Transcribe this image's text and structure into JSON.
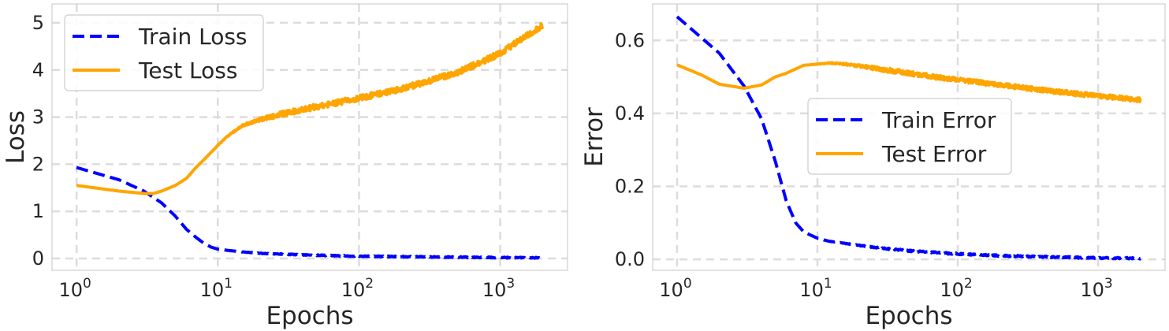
{
  "colors": {
    "train": "#0000ff",
    "test": "#ffa500",
    "grid": "#dcdcdc",
    "text": "#262626"
  },
  "chart_data": [
    {
      "type": "line",
      "xlabel": "Epochs",
      "ylabel": "Loss",
      "xscale": "log",
      "xlim": [
        0.67,
        3000
      ],
      "ylim": [
        -0.25,
        5.4
      ],
      "xticks": [
        {
          "value": 1,
          "base": "10",
          "exp": "0"
        },
        {
          "value": 10,
          "base": "10",
          "exp": "1"
        },
        {
          "value": 100,
          "base": "10",
          "exp": "2"
        },
        {
          "value": 1000,
          "base": "10",
          "exp": "3"
        }
      ],
      "yticks": [
        {
          "value": 0,
          "label": "0"
        },
        {
          "value": 1,
          "label": "1"
        },
        {
          "value": 2,
          "label": "2"
        },
        {
          "value": 3,
          "label": "3"
        },
        {
          "value": 4,
          "label": "4"
        },
        {
          "value": 5,
          "label": "5"
        }
      ],
      "grid": true,
      "legend": "upper left",
      "series": [
        {
          "name": "Train Loss",
          "style": "dashed",
          "color": "#0000ff",
          "noise": 0.01,
          "x": [
            1,
            2,
            3,
            4,
            5,
            6,
            7,
            8,
            9,
            10,
            12,
            15,
            20,
            30,
            50,
            100,
            200,
            500,
            1000,
            2000
          ],
          "y": [
            1.93,
            1.67,
            1.43,
            1.18,
            0.9,
            0.62,
            0.45,
            0.32,
            0.24,
            0.2,
            0.17,
            0.14,
            0.11,
            0.09,
            0.07,
            0.05,
            0.04,
            0.03,
            0.02,
            0.015
          ]
        },
        {
          "name": "Test Loss",
          "style": "solid",
          "color": "#ffa500",
          "noise": 0.06,
          "x": [
            1,
            2,
            3,
            3.5,
            4,
            5,
            6,
            7,
            8,
            10,
            12,
            15,
            20,
            30,
            50,
            100,
            200,
            300,
            500,
            1000,
            1500,
            2000
          ],
          "y": [
            1.55,
            1.43,
            1.38,
            1.38,
            1.43,
            1.55,
            1.7,
            1.93,
            2.1,
            2.4,
            2.62,
            2.82,
            2.95,
            3.08,
            3.22,
            3.4,
            3.6,
            3.75,
            3.95,
            4.35,
            4.7,
            4.95
          ]
        }
      ]
    },
    {
      "type": "line",
      "xlabel": "Epochs",
      "ylabel": "Error",
      "xscale": "log",
      "xlim": [
        0.67,
        3000
      ],
      "ylim": [
        -0.03,
        0.7
      ],
      "xticks": [
        {
          "value": 1,
          "base": "10",
          "exp": "0"
        },
        {
          "value": 10,
          "base": "10",
          "exp": "1"
        },
        {
          "value": 100,
          "base": "10",
          "exp": "2"
        },
        {
          "value": 1000,
          "base": "10",
          "exp": "3"
        }
      ],
      "yticks": [
        {
          "value": 0,
          "label": "0.0"
        },
        {
          "value": 0.2,
          "label": "0.2"
        },
        {
          "value": 0.4,
          "label": "0.4"
        },
        {
          "value": 0.6,
          "label": "0.6"
        }
      ],
      "grid": true,
      "legend": "center right",
      "series": [
        {
          "name": "Train Error",
          "style": "dashed",
          "color": "#0000ff",
          "noise": 0.002,
          "x": [
            1,
            2,
            3,
            4,
            5,
            6,
            7,
            8,
            10,
            12,
            15,
            20,
            30,
            50,
            100,
            200,
            500,
            1000,
            2000
          ],
          "y": [
            0.665,
            0.565,
            0.475,
            0.385,
            0.27,
            0.16,
            0.1,
            0.075,
            0.058,
            0.05,
            0.045,
            0.038,
            0.03,
            0.022,
            0.015,
            0.01,
            0.006,
            0.004,
            0.003
          ]
        },
        {
          "name": "Test Error",
          "style": "solid",
          "color": "#ffa500",
          "noise": 0.006,
          "x": [
            1,
            1.5,
            2,
            3,
            4,
            5,
            6,
            8,
            10,
            12,
            15,
            20,
            30,
            50,
            100,
            200,
            500,
            1000,
            2000
          ],
          "y": [
            0.533,
            0.505,
            0.48,
            0.469,
            0.478,
            0.5,
            0.51,
            0.532,
            0.535,
            0.538,
            0.536,
            0.53,
            0.52,
            0.507,
            0.492,
            0.478,
            0.46,
            0.448,
            0.437
          ]
        }
      ]
    }
  ]
}
